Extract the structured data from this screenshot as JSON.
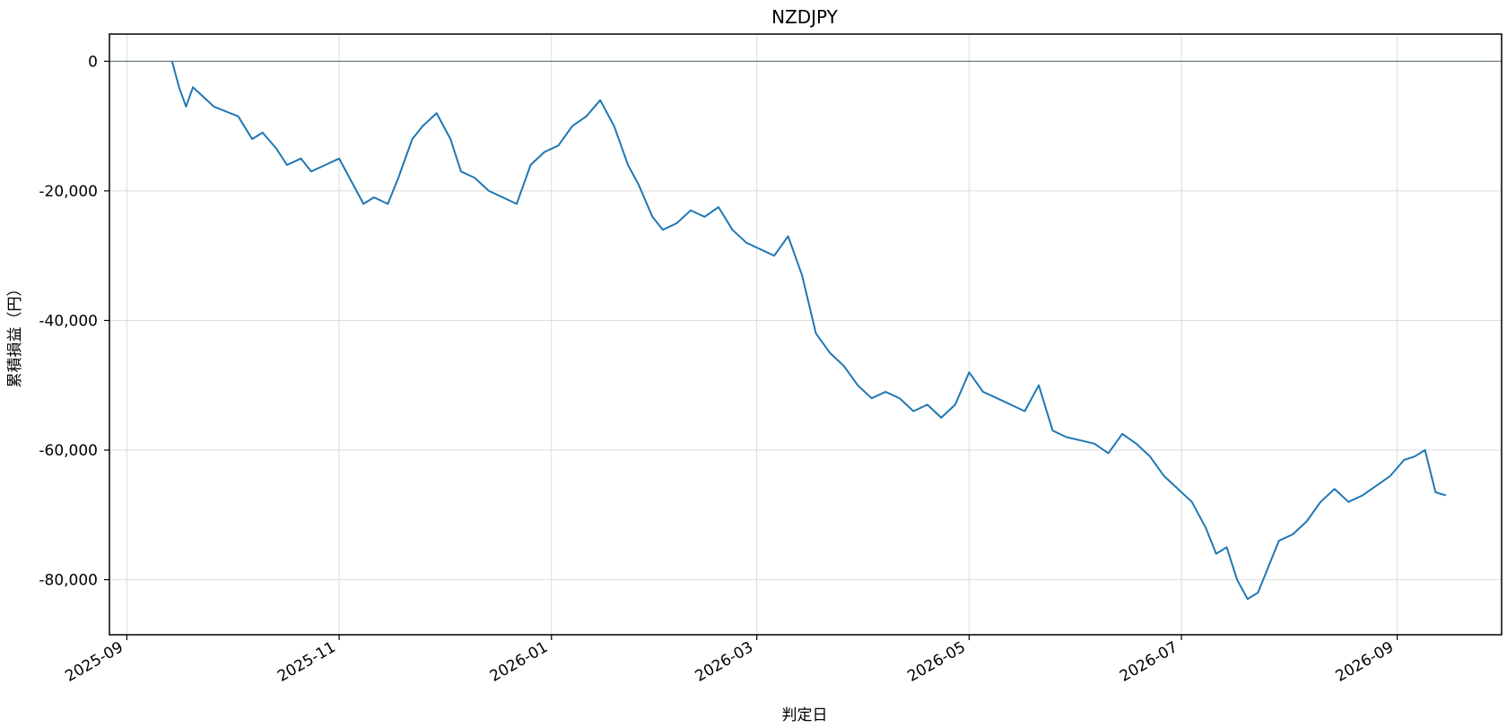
{
  "chart_data": {
    "type": "line",
    "title": "NZDJPY",
    "xlabel": "判定日",
    "ylabel": "累積損益（円）",
    "grid": true,
    "zero_line": true,
    "color": "#1f77b4",
    "y_ticks": [
      0,
      -20000,
      -40000,
      -60000,
      -80000
    ],
    "y_tick_labels": [
      "0",
      "-20,000",
      "-40,000",
      "-60,000",
      "-80,000"
    ],
    "ylim": [
      -88500,
      4200
    ],
    "x_ticks": [
      "2025-09-01",
      "2025-11-01",
      "2026-01-01",
      "2026-03-01",
      "2026-05-01",
      "2026-07-01",
      "2026-09-01"
    ],
    "x_tick_labels": [
      "2025-09",
      "2025-11",
      "2026-01",
      "2026-03",
      "2026-05",
      "2026-07",
      "2026-09"
    ],
    "xlim": [
      "2025-08-27",
      "2026-10-01"
    ],
    "series": [
      {
        "x": [
          "2025-09-14",
          "2025-09-16",
          "2025-09-18",
          "2025-09-20",
          "2025-09-22",
          "2025-09-26",
          "2025-10-03",
          "2025-10-07",
          "2025-10-10",
          "2025-10-14",
          "2025-10-17",
          "2025-10-21",
          "2025-10-24",
          "2025-10-28",
          "2025-11-01",
          "2025-11-04",
          "2025-11-08",
          "2025-11-11",
          "2025-11-15",
          "2025-11-18",
          "2025-11-22",
          "2025-11-25",
          "2025-11-29",
          "2025-12-03",
          "2025-12-06",
          "2025-12-10",
          "2025-12-14",
          "2025-12-18",
          "2025-12-22",
          "2025-12-26",
          "2025-12-30",
          "2026-01-03",
          "2026-01-07",
          "2026-01-11",
          "2026-01-15",
          "2026-01-19",
          "2026-01-23",
          "2026-01-26",
          "2026-01-30",
          "2026-02-02",
          "2026-02-06",
          "2026-02-10",
          "2026-02-14",
          "2026-02-18",
          "2026-02-22",
          "2026-02-26",
          "2026-03-02",
          "2026-03-06",
          "2026-03-10",
          "2026-03-14",
          "2026-03-18",
          "2026-03-22",
          "2026-03-26",
          "2026-03-30",
          "2026-04-03",
          "2026-04-07",
          "2026-04-11",
          "2026-04-15",
          "2026-04-19",
          "2026-04-23",
          "2026-04-27",
          "2026-05-01",
          "2026-05-05",
          "2026-05-09",
          "2026-05-13",
          "2026-05-17",
          "2026-05-21",
          "2026-05-25",
          "2026-05-29",
          "2026-06-02",
          "2026-06-06",
          "2026-06-10",
          "2026-06-14",
          "2026-06-18",
          "2026-06-22",
          "2026-06-26",
          "2026-06-30",
          "2026-07-04",
          "2026-07-08",
          "2026-07-11",
          "2026-07-14",
          "2026-07-17",
          "2026-07-20",
          "2026-07-23",
          "2026-07-26",
          "2026-07-29",
          "2026-08-02",
          "2026-08-06",
          "2026-08-10",
          "2026-08-14",
          "2026-08-18",
          "2026-08-22",
          "2026-08-26",
          "2026-08-30",
          "2026-09-03",
          "2026-09-06",
          "2026-09-09",
          "2026-09-12",
          "2026-09-15"
        ],
        "values": [
          0,
          -4000,
          -7000,
          -4000,
          -5000,
          -7000,
          -8500,
          -12000,
          -11000,
          -13500,
          -16000,
          -15000,
          -17000,
          -16000,
          -15000,
          -18000,
          -22000,
          -21000,
          -22000,
          -18000,
          -12000,
          -10000,
          -8000,
          -12000,
          -17000,
          -18000,
          -20000,
          -21000,
          -22000,
          -16000,
          -14000,
          -13000,
          -10000,
          -8500,
          -6000,
          -10000,
          -16000,
          -19000,
          -24000,
          -26000,
          -25000,
          -23000,
          -24000,
          -22500,
          -26000,
          -28000,
          -29000,
          -30000,
          -27000,
          -33000,
          -42000,
          -45000,
          -47000,
          -50000,
          -52000,
          -51000,
          -52000,
          -54000,
          -53000,
          -55000,
          -53000,
          -48000,
          -51000,
          -52000,
          -53000,
          -54000,
          -50000,
          -57000,
          -58000,
          -58500,
          -59000,
          -60500,
          -57500,
          -59000,
          -61000,
          -64000,
          -66000,
          -68000,
          -72000,
          -76000,
          -75000,
          -80000,
          -83000,
          -82000,
          -78000,
          -74000,
          -73000,
          -71000,
          -68000,
          -66000,
          -68000,
          -67000,
          -65500,
          -64000,
          -61500,
          -61000,
          -60000,
          -66500,
          -67000
        ]
      }
    ]
  }
}
